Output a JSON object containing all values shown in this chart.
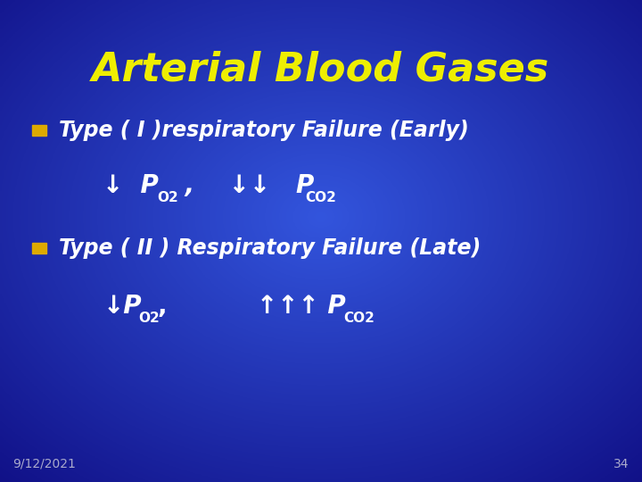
{
  "title": "Arterial Blood Gases",
  "title_color": "#EEEE00",
  "title_fontsize": 32,
  "title_fontweight": "bold",
  "bg_color_center": "#3355DD",
  "bg_color_edge": "#111188",
  "text_color": "#FFFFFF",
  "bullet_color": "#DDAA00",
  "bullet1_label": "Type ( I )respiratory Failure (Early)",
  "bullet2_label": "Type ( II ) Respiratory Failure (Late)",
  "date_text": "9/12/2021",
  "page_num": "34",
  "footer_color": "#AAAACC",
  "footer_fontsize": 10
}
